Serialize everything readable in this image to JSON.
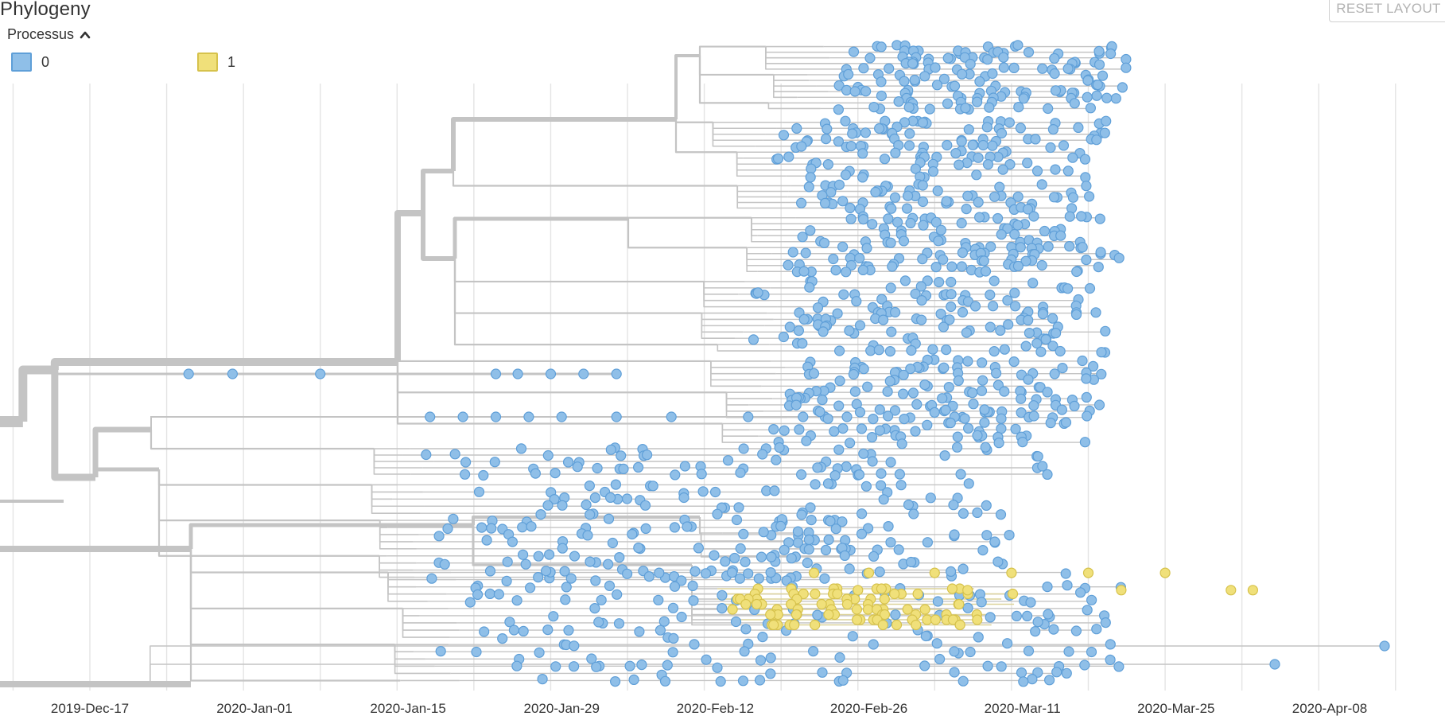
{
  "panel": {
    "title": "Phylogeny",
    "reset_label": "RESET LAYOUT"
  },
  "legend": {
    "title": "Processus",
    "icon": "chevron-up-icon",
    "items": [
      {
        "label": "0",
        "color": "#8fbfe8",
        "border": "#5f9fd8"
      },
      {
        "label": "1",
        "color": "#f0e07a",
        "border": "#d6c24c"
      }
    ]
  },
  "colors": {
    "branch": "#c4c4c4",
    "grid": "#e4e4e4",
    "tip_0": "#8fbfe8",
    "tip_1": "#f0e07a"
  },
  "chart_data": {
    "type": "scatter",
    "title": "",
    "xlabel": "",
    "ylabel": "",
    "grid": true,
    "x_ticks": [
      "2019-Dec-17",
      "2020-Jan-01",
      "2020-Jan-15",
      "2020-Jan-29",
      "2020-Feb-12",
      "2020-Feb-26",
      "2020-Mar-11",
      "2020-Mar-25",
      "2020-Apr-08"
    ],
    "xlim": [
      "2019-Dec-07",
      "2020-Apr-17"
    ],
    "root_date": "2019-Dec-08",
    "series": [
      {
        "name": "0",
        "tips": [
          {
            "date": "2019-Dec-26",
            "row": 0.5
          },
          {
            "date": "2019-Dec-30",
            "row": 0.5
          },
          {
            "date": "2020-Jan-07",
            "row": 0.5
          },
          {
            "date": "2020-Jan-23",
            "row": 0.5
          },
          {
            "date": "2020-Jan-25",
            "row": 0.5
          },
          {
            "date": "2020-Jan-28",
            "row": 0.5
          },
          {
            "date": "2020-Jan-31",
            "row": 0.5
          },
          {
            "date": "2020-Feb-03",
            "row": 0.5
          },
          {
            "date": "2020-Jan-17",
            "row": 0.6
          },
          {
            "date": "2020-Jan-20",
            "row": 0.6
          },
          {
            "date": "2020-Jan-23",
            "row": 0.6
          },
          {
            "date": "2020-Jan-26",
            "row": 0.6
          },
          {
            "date": "2020-Jan-29",
            "row": 0.6
          },
          {
            "date": "2020-Feb-03",
            "row": 0.6
          },
          {
            "date": "2020-Feb-08",
            "row": 0.6
          },
          {
            "date": "2020-Feb-15",
            "row": 0.6
          },
          {
            "date": "2020-Feb-20",
            "row": 0.6
          },
          {
            "date": "2020-Feb-22",
            "row": 0.6
          },
          {
            "date": "2020-Feb-24",
            "row": 0.6
          },
          {
            "date": "2020-Apr-13",
            "row": 0.85
          },
          {
            "date": "2020-Apr-03",
            "row": 0.87
          }
        ]
      },
      {
        "name": "1",
        "tips": [
          {
            "date": "2020-Feb-21",
            "row": 0.812
          },
          {
            "date": "2020-Feb-26",
            "row": 0.812
          },
          {
            "date": "2020-Mar-03",
            "row": 0.812
          },
          {
            "date": "2020-Mar-10",
            "row": 0.812
          },
          {
            "date": "2020-Mar-17",
            "row": 0.812
          },
          {
            "date": "2020-Mar-24",
            "row": 0.812
          },
          {
            "date": "2020-Feb-25",
            "row": 0.84
          },
          {
            "date": "2020-Mar-06",
            "row": 0.84
          },
          {
            "date": "2020-Mar-20",
            "row": 0.84
          },
          {
            "date": "2020-Mar-30",
            "row": 0.84
          },
          {
            "date": "2020-Apr-01",
            "row": 0.84
          }
        ]
      }
    ]
  }
}
